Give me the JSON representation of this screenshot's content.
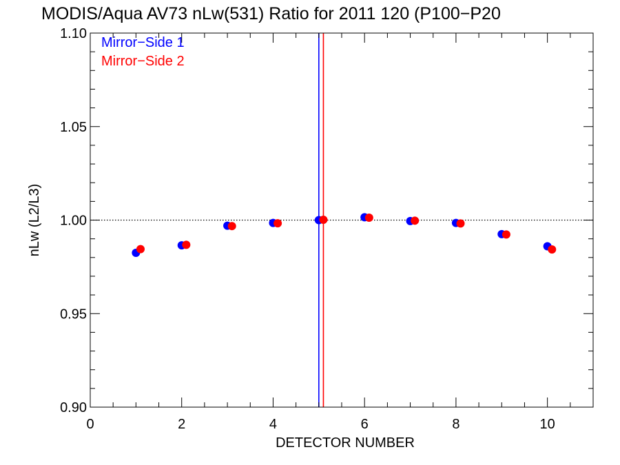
{
  "chart_data": {
    "type": "scatter",
    "title": "MODIS/Aqua AV73 nLw(531) Ratio for 2011 120 (P100−P20",
    "xlabel": "DETECTOR NUMBER",
    "ylabel": "nLw (L2/L3)",
    "xlim": [
      0,
      11
    ],
    "ylim": [
      0.9,
      1.1
    ],
    "xticks": [
      0,
      2,
      4,
      6,
      8,
      10
    ],
    "xtick_labels": [
      "0",
      "2",
      "4",
      "6",
      "8",
      "10"
    ],
    "yticks": [
      0.9,
      0.95,
      1.0,
      1.05,
      1.1
    ],
    "ytick_labels": [
      "0.90",
      "0.95",
      "1.00",
      "1.05",
      "1.10"
    ],
    "grid": false,
    "legend_position": "top-left",
    "reference_line_y": 1.0,
    "series": [
      {
        "name": "Mirror−Side 1",
        "color": "#0000ff",
        "x": [
          1.0,
          2.0,
          3.0,
          4.0,
          5.0,
          6.0,
          7.0,
          8.0,
          9.0,
          10.0
        ],
        "y": [
          0.9825,
          0.9865,
          0.997,
          0.9985,
          1.0,
          1.0015,
          0.9995,
          0.9985,
          0.9925,
          0.986
        ],
        "vline_x": 5.0
      },
      {
        "name": "Mirror−Side 2",
        "color": "#ff0000",
        "x": [
          1.1,
          2.1,
          3.1,
          4.1,
          5.1,
          6.1,
          7.1,
          8.1,
          9.1,
          10.1
        ],
        "y": [
          0.9845,
          0.9868,
          0.9968,
          0.9983,
          1.0002,
          1.0013,
          0.9997,
          0.9982,
          0.9923,
          0.9843
        ],
        "vline_x": 5.1
      }
    ]
  }
}
